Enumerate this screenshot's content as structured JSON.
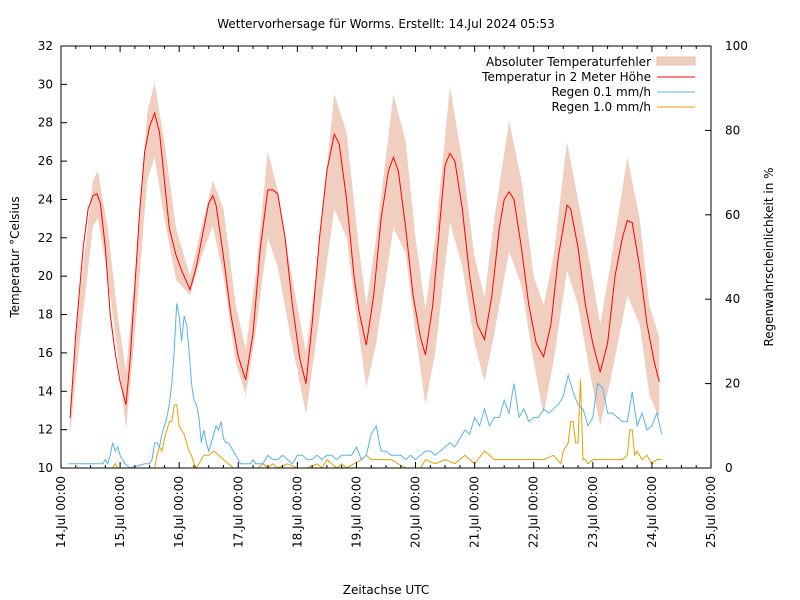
{
  "chart_data": {
    "type": "line",
    "title": "Wettervorhersage für Worms. Erstellt: 14.Jul 2024 05:53",
    "xlabel": "Zeitachse UTC",
    "ylabel": "Temperatur °Celsius",
    "y2label": "Regenwahrscheinlichkeit in %",
    "x_unit": "hours since 14.Jul 00:00 UTC",
    "xlim": [
      0,
      264
    ],
    "ylim": [
      10,
      32
    ],
    "y2lim": [
      0,
      100
    ],
    "x_ticks": [
      "14.Jul 00:00",
      "15.Jul 00:00",
      "16.Jul 00:00",
      "17.Jul 00:00",
      "18.Jul 00:00",
      "19.Jul 00:00",
      "20.Jul 00:00",
      "21.Jul 00:00",
      "22.Jul 00:00",
      "23.Jul 00:00",
      "24.Jul 00:00",
      "25.Jul 00:00"
    ],
    "y_ticks": [
      "10",
      "12",
      "14",
      "16",
      "18",
      "20",
      "22",
      "24",
      "26",
      "28",
      "30",
      "32"
    ],
    "y2_ticks": [
      "0",
      "20",
      "40",
      "60",
      "80",
      "100"
    ],
    "legend_position": "top-right",
    "colors": {
      "error_band": "#f0cfc0",
      "temperature": "#ff0000",
      "rain01": "#56b4e9",
      "rain10": "#e69f00"
    },
    "series": [
      {
        "name": "Absoluter Temperaturfehler",
        "kind": "band",
        "x": [
          3.7,
          8,
          13,
          15,
          19,
          23,
          26.4,
          30,
          35,
          38,
          42,
          46.7,
          52.4,
          57,
          61.7,
          66,
          71,
          75,
          79,
          84,
          88,
          93,
          99.5,
          104,
          111,
          116,
          121,
          124,
          128,
          135,
          140,
          144,
          148,
          152,
          158,
          163,
          168,
          172,
          176,
          182,
          187,
          192,
          196,
          200,
          205.5,
          210,
          215,
          219,
          223,
          230,
          235,
          239,
          243
        ],
        "lower": [
          11.8,
          17,
          22.6,
          23.0,
          20,
          16,
          12.0,
          17,
          25,
          26.2,
          23,
          19.8,
          19.0,
          21,
          22.6,
          20,
          15.5,
          13.8,
          17,
          22.0,
          20.5,
          17,
          12.8,
          17,
          23.5,
          22,
          17,
          14.2,
          16.5,
          22.5,
          21.2,
          17,
          13.3,
          16,
          22.8,
          20.5,
          16.5,
          14.5,
          17,
          21.3,
          19.5,
          15.5,
          12.8,
          15.5,
          20.3,
          18.5,
          14.8,
          12.2,
          14.5,
          19.0,
          17.5,
          13.8,
          12.6
        ],
        "upper": [
          13.2,
          19.5,
          25.0,
          25.5,
          22.5,
          18,
          15.0,
          20,
          28.5,
          30.1,
          27,
          22.5,
          20.0,
          22.5,
          25.0,
          23.5,
          18.5,
          16.2,
          20,
          26.5,
          24.5,
          20.5,
          16.0,
          20.5,
          29.5,
          27.5,
          21.5,
          18.5,
          22,
          29.5,
          27,
          22,
          18.3,
          22,
          29.9,
          26,
          21,
          18.9,
          23,
          28.1,
          25,
          20,
          18.5,
          21,
          27.0,
          24,
          20.5,
          17.5,
          20.5,
          26.2,
          23,
          18.5,
          16.8
        ]
      },
      {
        "name": "Temperatur in 2 Meter Höhe",
        "kind": "line",
        "x": [
          3.7,
          6,
          9,
          11,
          13,
          14.6,
          16,
          18,
          20,
          22,
          24,
          26.4,
          28,
          30,
          32,
          34,
          36,
          38,
          40,
          42,
          44,
          46.7,
          49,
          52.4,
          55,
          58,
          60,
          61.7,
          63,
          66,
          69,
          72,
          75,
          78,
          81,
          84,
          86,
          88,
          91,
          94,
          97,
          99.5,
          102,
          105,
          108,
          111,
          113,
          116,
          119,
          121,
          124,
          127,
          130,
          133,
          135,
          137,
          140,
          143,
          146,
          148,
          151,
          154,
          156,
          158,
          160,
          163,
          166,
          169,
          172,
          175,
          178,
          180,
          182,
          184,
          187,
          190,
          193,
          196,
          199,
          202,
          205.5,
          207,
          210,
          213,
          216,
          219,
          222,
          225,
          228,
          230,
          232,
          235,
          238,
          241,
          243
        ],
        "y": [
          12.6,
          17,
          21.5,
          23.5,
          24.2,
          24.3,
          23.8,
          21.5,
          18,
          16,
          14.5,
          13.3,
          15.5,
          19.5,
          23.5,
          26.5,
          27.8,
          28.5,
          27.5,
          25,
          22.5,
          21.1,
          20.3,
          19.3,
          20.5,
          22.5,
          23.8,
          24.2,
          23.7,
          21,
          18,
          15.8,
          14.6,
          17,
          21.5,
          24.5,
          24.5,
          24.3,
          22,
          18.5,
          15.7,
          14.4,
          17.5,
          22,
          25.5,
          27.4,
          26.9,
          24,
          20,
          18.2,
          16.4,
          19,
          23,
          25.5,
          26.2,
          25.5,
          22.5,
          19,
          16.8,
          15.9,
          18.5,
          23,
          25.8,
          26.4,
          26.0,
          23.5,
          20,
          17.5,
          16.7,
          19,
          22.5,
          24.0,
          24.4,
          24.0,
          21.5,
          18.5,
          16.5,
          15.8,
          17.5,
          21.0,
          23.7,
          23.5,
          21.5,
          18.5,
          16.5,
          15.0,
          16.5,
          20.0,
          22.0,
          22.9,
          22.8,
          20.5,
          17.5,
          15.5,
          14.5
        ]
      },
      {
        "name": "Regen 0.1 mm/h",
        "kind": "line",
        "axis": "y2",
        "x": [
          3,
          17,
          18,
          19,
          20,
          21,
          22,
          23,
          24,
          26,
          28,
          34,
          35,
          36,
          37,
          38,
          39,
          40,
          41,
          42,
          43,
          44,
          45,
          46,
          47,
          48,
          49,
          50,
          51,
          52,
          53,
          54,
          55,
          56,
          57,
          58,
          59,
          60,
          61,
          62,
          63,
          64,
          65,
          66,
          67,
          68,
          69,
          70,
          71,
          72,
          73,
          74,
          75,
          76,
          77,
          78,
          79,
          80,
          82,
          84,
          86,
          88,
          90,
          92,
          94,
          96,
          98,
          100,
          102,
          104,
          106,
          108,
          110,
          112,
          114,
          116,
          118,
          120,
          122,
          124,
          126,
          128,
          130,
          132,
          134,
          136,
          138,
          140,
          142,
          144,
          146,
          148,
          150,
          152,
          154,
          156,
          158,
          160,
          162,
          164,
          166,
          168,
          170,
          172,
          174,
          176,
          178,
          180,
          182,
          184,
          186,
          188,
          190,
          192,
          194,
          196,
          198,
          200,
          202,
          204,
          206,
          208,
          210,
          212,
          214,
          216,
          218,
          220,
          222,
          224,
          226,
          228,
          230,
          232,
          234,
          236,
          238,
          240,
          242,
          244
        ],
        "y": [
          1,
          1,
          2,
          1,
          3,
          6,
          4,
          5,
          3,
          1,
          0,
          1,
          1,
          1,
          2,
          6,
          6,
          5,
          8,
          10,
          12,
          15,
          20,
          28,
          39,
          36,
          30,
          36,
          34,
          28,
          20,
          16,
          15,
          12,
          6,
          9,
          6,
          4,
          6,
          8,
          10,
          9,
          11,
          7,
          6,
          6,
          5,
          4,
          3,
          2,
          1,
          1,
          1,
          1,
          1,
          2,
          1,
          1,
          1,
          3,
          2,
          2,
          3,
          2,
          1,
          3,
          3,
          2,
          2,
          3,
          2,
          3,
          3,
          2,
          3,
          3,
          3,
          5,
          2,
          3,
          8,
          10,
          4,
          4,
          3,
          3,
          3,
          2,
          3,
          2,
          3,
          4,
          4,
          3,
          4,
          5,
          6,
          5,
          7,
          9,
          8,
          12,
          10,
          14,
          10,
          12,
          12,
          16,
          13,
          20,
          12,
          14,
          11,
          12,
          12,
          14,
          13,
          14,
          15,
          17,
          22,
          18,
          15,
          14,
          10,
          12,
          20,
          19,
          13,
          13,
          12,
          11,
          11,
          18,
          10,
          13,
          9,
          10,
          13,
          8
        ],
        "legend": "Regen 0.1 mm/h"
      },
      {
        "name": "Regen 1.0 mm/h",
        "kind": "line",
        "axis": "y2",
        "x": [
          21,
          22,
          23,
          24,
          38,
          39,
          40,
          41,
          42,
          43,
          44,
          45,
          46,
          47,
          48,
          49,
          50,
          51,
          52,
          53,
          54,
          55,
          56,
          57,
          58,
          60,
          62,
          64,
          66,
          68,
          70,
          80,
          82,
          84,
          86,
          88,
          92,
          96,
          100,
          104,
          106,
          108,
          110,
          112,
          114,
          116,
          122,
          124,
          126,
          130,
          134,
          140,
          146,
          148,
          152,
          156,
          160,
          164,
          168,
          172,
          176,
          180,
          184,
          188,
          192,
          196,
          200,
          203,
          204,
          206,
          207,
          208,
          209,
          210,
          211,
          212,
          213,
          214,
          216,
          220,
          224,
          228,
          230,
          231,
          232,
          233,
          234,
          236,
          238,
          240,
          242,
          244
        ],
        "y": [
          0,
          1,
          0,
          0,
          0,
          3,
          5,
          4,
          7,
          9,
          11,
          11,
          15,
          15,
          10,
          9,
          8,
          6,
          4,
          3,
          1,
          0,
          1,
          2,
          3,
          3,
          4,
          3,
          2,
          1,
          0,
          0,
          1,
          0,
          1,
          0,
          1,
          0,
          0,
          1,
          0,
          2,
          1,
          0,
          1,
          0,
          2,
          3,
          2,
          2,
          2,
          0,
          0,
          2,
          1,
          2,
          1,
          3,
          1,
          4,
          2,
          2,
          2,
          2,
          2,
          2,
          3,
          1,
          4,
          6,
          11,
          11,
          6,
          6,
          21,
          2,
          2,
          1,
          2,
          2,
          2,
          2,
          3,
          9,
          9,
          3,
          4,
          2,
          3,
          1,
          2,
          2
        ],
        "legend": "Regen 1.0 mm/h"
      }
    ]
  }
}
